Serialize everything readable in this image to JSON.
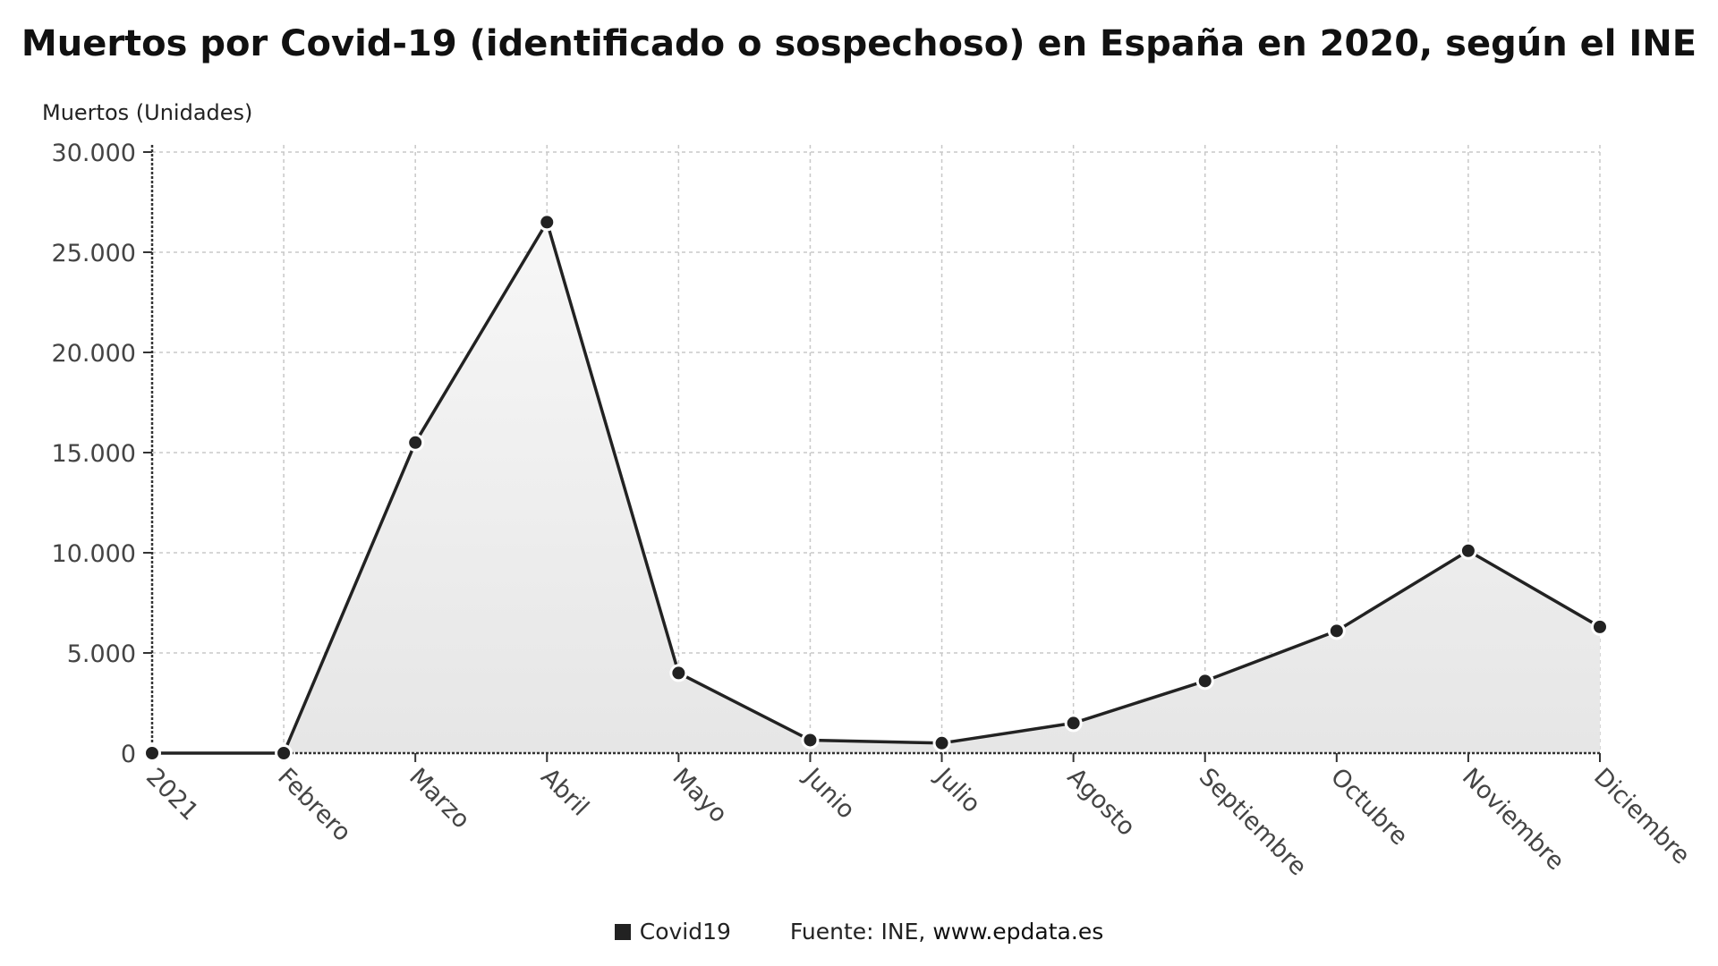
{
  "chart_data": {
    "type": "area",
    "title": "Muertos por Covid-19 (identificado o sospechoso) en España en 2020, según el INE",
    "ylabel": "Muertos (Unidades)",
    "xlabel": "",
    "categories": [
      "2021",
      "Febrero",
      "Marzo",
      "Abril",
      "Mayo",
      "Junio",
      "Julio",
      "Agosto",
      "Septiembre",
      "Octubre",
      "Noviembre",
      "Diciembre"
    ],
    "series": [
      {
        "name": "Covid19",
        "values": [
          0,
          0,
          15500,
          26500,
          4000,
          650,
          500,
          1500,
          3600,
          6100,
          10100,
          6300
        ]
      }
    ],
    "ylim": [
      0,
      30000
    ],
    "yticks": [
      0,
      5000,
      10000,
      15000,
      20000,
      25000,
      30000
    ],
    "ytick_labels": [
      "0",
      "5.000",
      "10.000",
      "15.000",
      "20.000",
      "25.000",
      "30.000"
    ],
    "grid": true,
    "legend_position": "bottom",
    "colors": {
      "line": "#222222",
      "marker": "#222222",
      "area_top": "#f7f7f7",
      "area_bottom": "#e6e6e6",
      "grid": "#c8c8c8"
    }
  },
  "legend": {
    "label": "Covid19"
  },
  "source": {
    "prefix": "Fuente: INE,",
    "site": "www.epdata.es"
  }
}
